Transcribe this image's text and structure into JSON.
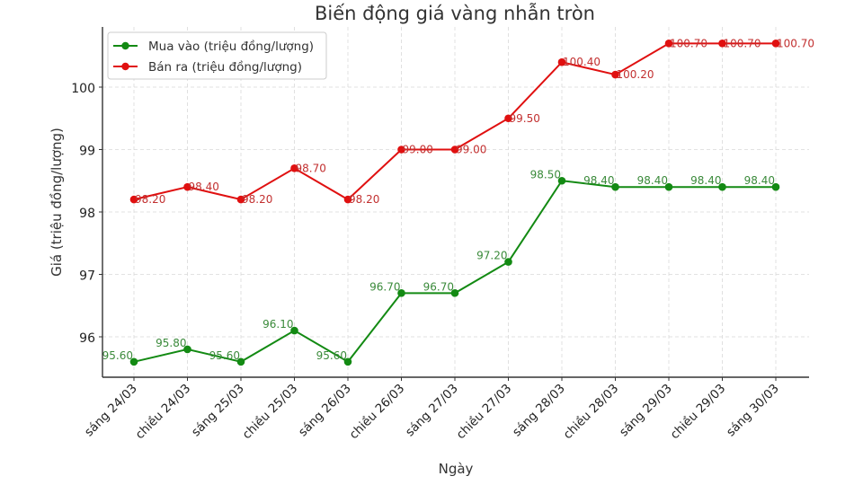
{
  "chart_data": {
    "type": "line",
    "title": "Biến động giá vàng nhẫn tròn",
    "xlabel": "Ngày",
    "ylabel": "Giá (triệu đồng/lượng)",
    "categories": [
      "sáng 24/03",
      "chiều 24/03",
      "sáng 25/03",
      "chiều 25/03",
      "sáng 26/03",
      "chiều 26/03",
      "sáng 27/03",
      "chiều 27/03",
      "sáng 28/03",
      "chiều 28/03",
      "sáng 29/03",
      "chiều 29/03",
      "sáng 30/03"
    ],
    "series": [
      {
        "name": "Mua vào (triệu đồng/lượng)",
        "color": "#138a13",
        "label_color": "#3a8a3a",
        "values": [
          95.6,
          95.8,
          95.6,
          96.1,
          95.6,
          96.7,
          96.7,
          97.2,
          98.5,
          98.4,
          98.4,
          98.4,
          98.4
        ],
        "labels": [
          "95.60",
          "95.80",
          "95.60",
          "96.10",
          "95.60",
          "96.70",
          "96.70",
          "97.20",
          "98.50",
          "98.40",
          "98.40",
          "98.40",
          "98.40"
        ]
      },
      {
        "name": "Bán ra (triệu đồng/lượng)",
        "color": "#e01010",
        "label_color": "#c23030",
        "values": [
          98.2,
          98.4,
          98.2,
          98.7,
          98.2,
          99.0,
          99.0,
          99.5,
          100.4,
          100.2,
          100.7,
          100.7,
          100.7
        ],
        "labels": [
          "98.20",
          "98.40",
          "98.20",
          "98.70",
          "98.20",
          "99.00",
          "99.00",
          "99.50",
          "100.40",
          "100.20",
          "100.70",
          "100.70",
          "100.70"
        ]
      }
    ],
    "yticks": [
      96,
      97,
      98,
      99,
      100
    ],
    "ylim": [
      95.35,
      100.97
    ],
    "grid": true,
    "legend_position": "upper left"
  }
}
